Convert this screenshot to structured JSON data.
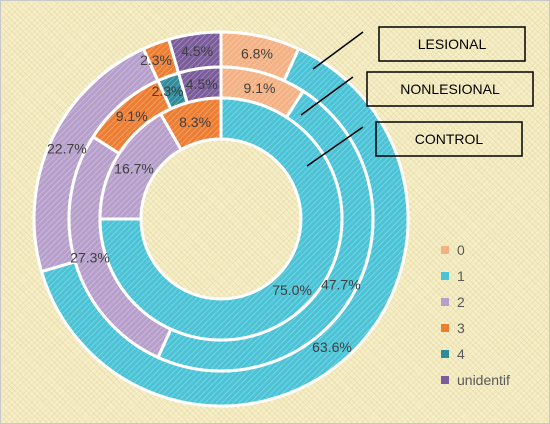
{
  "chart_data": {
    "type": "doughnut",
    "categories": [
      "0",
      "1",
      "2",
      "3",
      "4",
      "unidentif"
    ],
    "series": [
      {
        "name": "LESIONAL",
        "values": [
          6.8,
          63.6,
          22.7,
          2.3,
          0,
          4.5
        ]
      },
      {
        "name": "NONLESIONAL",
        "values": [
          9.1,
          47.7,
          27.3,
          9.1,
          2.3,
          4.5
        ]
      },
      {
        "name": "CONTROL",
        "values": [
          0,
          75.0,
          16.7,
          8.3,
          0,
          0
        ]
      }
    ],
    "labels": [
      [
        "6.8%",
        "63.6%",
        "22.7%",
        "2.3%",
        "",
        "4.5%"
      ],
      [
        "9.1%",
        "47.7%",
        "27.3%",
        "9.1%",
        "2.3%",
        "4.5%"
      ],
      [
        "",
        "75.0%",
        "16.7%",
        "8.3%",
        "",
        ""
      ]
    ],
    "legend": {
      "position": "right"
    },
    "colors": [
      "#f4b183",
      "#4bc3d6",
      "#b79fcb",
      "#ed7d31",
      "#2e8b9a",
      "#7a5c9b"
    ]
  }
}
